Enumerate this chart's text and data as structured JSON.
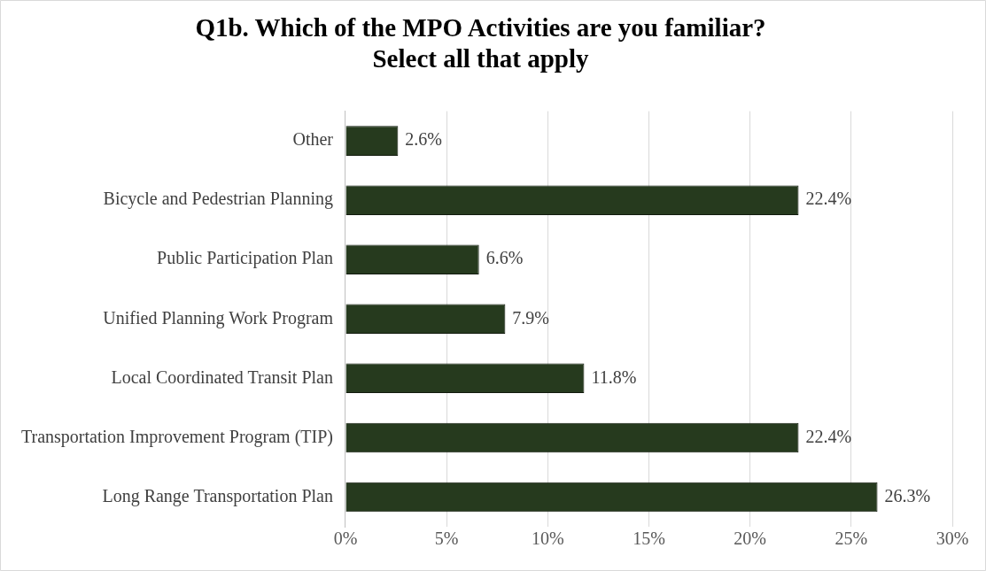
{
  "chart_data": {
    "type": "bar",
    "orientation": "horizontal",
    "title": "Q1b. Which of the MPO Activities are you familiar?\nSelect all that apply",
    "categories": [
      "Other",
      "Bicycle and Pedestrian Planning",
      "Public Participation Plan",
      "Unified Planning Work Program",
      "Local Coordinated Transit Plan",
      "Transportation Improvement Program (TIP)",
      "Long Range Transportation Plan"
    ],
    "values": [
      2.6,
      22.4,
      6.6,
      7.9,
      11.8,
      22.4,
      26.3
    ],
    "value_labels": [
      "2.6%",
      "22.4%",
      "6.6%",
      "7.9%",
      "11.8%",
      "22.4%",
      "26.3%"
    ],
    "color": "#263a1e",
    "xlim": [
      0,
      30
    ],
    "xticks": [
      {
        "value": 0,
        "label": "0%"
      },
      {
        "value": 5,
        "label": "5%"
      },
      {
        "value": 10,
        "label": "10%"
      },
      {
        "value": 15,
        "label": "15%"
      },
      {
        "value": 20,
        "label": "20%"
      },
      {
        "value": 25,
        "label": "25%"
      },
      {
        "value": 30,
        "label": "30%"
      }
    ],
    "grid": "x",
    "legend": false
  }
}
